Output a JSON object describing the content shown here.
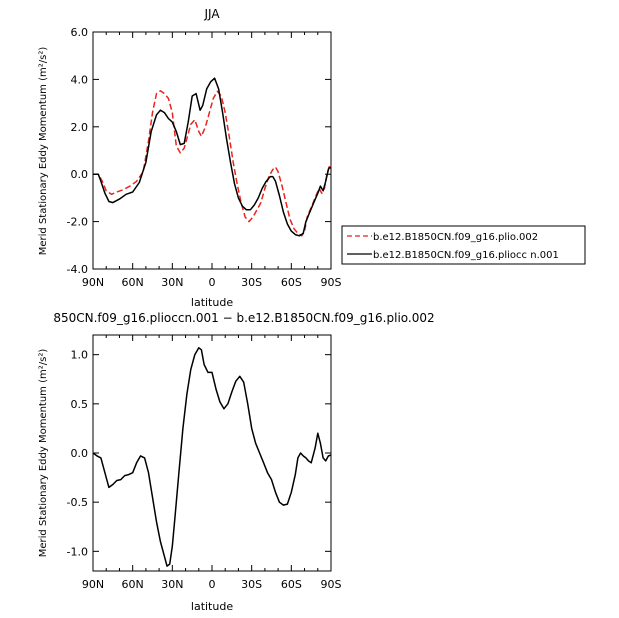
{
  "chart_data": [
    {
      "type": "line",
      "title": "JJA",
      "xlabel": "latitude",
      "ylabel": "Merid Stationary Eddy Momentum  (m²/s²)",
      "xlim": [
        90,
        -90
      ],
      "ylim": [
        -4.0,
        6.0
      ],
      "x_ticks": [
        90,
        60,
        30,
        0,
        -30,
        -60,
        -90
      ],
      "x_tick_labels": [
        "90N",
        "60N",
        "30N",
        "0",
        "30S",
        "60S",
        "90S"
      ],
      "y_ticks": [
        -4,
        -2,
        0,
        2,
        4,
        6
      ],
      "y_tick_labels": [
        "-4.0",
        "-2.0",
        "0.0",
        "2.0",
        "4.0",
        "6.0"
      ],
      "legend_position": "right",
      "series": [
        {
          "name": "b.e12.B1850CN.f09_g16.plio.002",
          "color": "#e8241f",
          "dash": "dashed",
          "points": [
            [
              90,
              0
            ],
            [
              86,
              0
            ],
            [
              83,
              -0.3
            ],
            [
              80,
              -0.7
            ],
            [
              76,
              -0.85
            ],
            [
              72,
              -0.75
            ],
            [
              67,
              -0.65
            ],
            [
              62,
              -0.5
            ],
            [
              57,
              -0.3
            ],
            [
              52,
              0.1
            ],
            [
              48,
              1.4
            ],
            [
              45,
              2.6
            ],
            [
              42,
              3.4
            ],
            [
              39,
              3.52
            ],
            [
              36,
              3.4
            ],
            [
              33,
              3.2
            ],
            [
              30,
              2.6
            ],
            [
              27,
              1.2
            ],
            [
              24,
              0.9
            ],
            [
              21,
              1.1
            ],
            [
              19,
              1.5
            ],
            [
              16,
              2.1
            ],
            [
              13,
              2.3
            ],
            [
              10,
              1.8
            ],
            [
              8,
              1.6
            ],
            [
              5,
              2.0
            ],
            [
              2,
              2.6
            ],
            [
              -1,
              3.2
            ],
            [
              -4,
              3.5
            ],
            [
              -7,
              3.3
            ],
            [
              -10,
              2.6
            ],
            [
              -13,
              1.6
            ],
            [
              -16,
              0.5
            ],
            [
              -19,
              -0.4
            ],
            [
              -22,
              -1.2
            ],
            [
              -25,
              -1.8
            ],
            [
              -28,
              -2.0
            ],
            [
              -31,
              -1.8
            ],
            [
              -34,
              -1.5
            ],
            [
              -37,
              -1.2
            ],
            [
              -40,
              -0.6
            ],
            [
              -43,
              -0.1
            ],
            [
              -46,
              0.2
            ],
            [
              -48,
              0.3
            ],
            [
              -50,
              0.1
            ],
            [
              -53,
              -0.5
            ],
            [
              -56,
              -1.2
            ],
            [
              -59,
              -1.9
            ],
            [
              -62,
              -2.3
            ],
            [
              -65,
              -2.5
            ],
            [
              -68,
              -2.6
            ],
            [
              -70,
              -2.4
            ],
            [
              -72,
              -1.8
            ],
            [
              -75,
              -1.4
            ],
            [
              -78,
              -1.0
            ],
            [
              -81,
              -0.6
            ],
            [
              -83,
              -0.8
            ],
            [
              -85,
              -0.6
            ],
            [
              -87,
              0
            ],
            [
              -89,
              0.4
            ],
            [
              -90,
              0.3
            ]
          ]
        },
        {
          "name": "b.e12.B1850CN.f09_g16.pliocc n.001",
          "color": "#000000",
          "dash": "solid",
          "points": [
            [
              90,
              0
            ],
            [
              86,
              0
            ],
            [
              84,
              -0.3
            ],
            [
              81,
              -0.8
            ],
            [
              78,
              -1.15
            ],
            [
              75,
              -1.2
            ],
            [
              70,
              -1.05
            ],
            [
              65,
              -0.85
            ],
            [
              60,
              -0.75
            ],
            [
              55,
              -0.35
            ],
            [
              50,
              0.5
            ],
            [
              46,
              1.8
            ],
            [
              42,
              2.5
            ],
            [
              39,
              2.7
            ],
            [
              36,
              2.6
            ],
            [
              33,
              2.35
            ],
            [
              30,
              2.2
            ],
            [
              27,
              1.8
            ],
            [
              24,
              1.25
            ],
            [
              21,
              1.3
            ],
            [
              18,
              2.2
            ],
            [
              15,
              3.3
            ],
            [
              12,
              3.4
            ],
            [
              9,
              2.7
            ],
            [
              7,
              2.9
            ],
            [
              4,
              3.6
            ],
            [
              1,
              3.9
            ],
            [
              -2,
              4.05
            ],
            [
              -5,
              3.6
            ],
            [
              -8,
              2.6
            ],
            [
              -11,
              1.5
            ],
            [
              -14,
              0.5
            ],
            [
              -17,
              -0.4
            ],
            [
              -20,
              -1.0
            ],
            [
              -23,
              -1.35
            ],
            [
              -26,
              -1.5
            ],
            [
              -29,
              -1.5
            ],
            [
              -32,
              -1.3
            ],
            [
              -35,
              -1.0
            ],
            [
              -38,
              -0.6
            ],
            [
              -41,
              -0.3
            ],
            [
              -44,
              -0.1
            ],
            [
              -46,
              -0.1
            ],
            [
              -48,
              -0.3
            ],
            [
              -51,
              -0.9
            ],
            [
              -54,
              -1.6
            ],
            [
              -57,
              -2.1
            ],
            [
              -60,
              -2.4
            ],
            [
              -63,
              -2.55
            ],
            [
              -66,
              -2.6
            ],
            [
              -69,
              -2.5
            ],
            [
              -71,
              -2.0
            ],
            [
              -74,
              -1.6
            ],
            [
              -77,
              -1.2
            ],
            [
              -80,
              -0.8
            ],
            [
              -82,
              -0.5
            ],
            [
              -84,
              -0.7
            ],
            [
              -86,
              -0.3
            ],
            [
              -88,
              0.2
            ],
            [
              -89,
              0.3
            ],
            [
              -90,
              0.25
            ]
          ]
        }
      ]
    },
    {
      "type": "line",
      "title": "850CN.f09_g16.plioccn.001 − b.e12.B1850CN.f09_g16.plio.002",
      "xlabel": "latitude",
      "ylabel": "Merid Stationary Eddy Momentum  (m²/s²)",
      "xlim": [
        90,
        -90
      ],
      "ylim": [
        -1.2,
        1.2
      ],
      "x_ticks": [
        90,
        60,
        30,
        0,
        -30,
        -60,
        -90
      ],
      "x_tick_labels": [
        "90N",
        "60N",
        "30N",
        "0",
        "30S",
        "60S",
        "90S"
      ],
      "y_ticks": [
        -1.0,
        -0.5,
        0.0,
        0.5,
        1.0
      ],
      "y_tick_labels": [
        "-1.0",
        "-0.5",
        "0.0",
        "0.5",
        "1.0"
      ],
      "series": [
        {
          "color": "#000000",
          "dash": "solid",
          "points": [
            [
              90,
              0
            ],
            [
              87,
              -0.03
            ],
            [
              84,
              -0.05
            ],
            [
              81,
              -0.2
            ],
            [
              78,
              -0.35
            ],
            [
              75,
              -0.32
            ],
            [
              72,
              -0.28
            ],
            [
              69,
              -0.27
            ],
            [
              66,
              -0.23
            ],
            [
              63,
              -0.22
            ],
            [
              60,
              -0.2
            ],
            [
              57,
              -0.1
            ],
            [
              54,
              -0.03
            ],
            [
              51,
              -0.05
            ],
            [
              48,
              -0.2
            ],
            [
              45,
              -0.45
            ],
            [
              42,
              -0.7
            ],
            [
              39,
              -0.9
            ],
            [
              36,
              -1.05
            ],
            [
              34,
              -1.15
            ],
            [
              32,
              -1.13
            ],
            [
              30,
              -0.95
            ],
            [
              28,
              -0.65
            ],
            [
              25,
              -0.2
            ],
            [
              22,
              0.25
            ],
            [
              19,
              0.6
            ],
            [
              16,
              0.85
            ],
            [
              13,
              1.0
            ],
            [
              10,
              1.07
            ],
            [
              8,
              1.05
            ],
            [
              6,
              0.9
            ],
            [
              3,
              0.82
            ],
            [
              0,
              0.82
            ],
            [
              -3,
              0.65
            ],
            [
              -6,
              0.52
            ],
            [
              -9,
              0.45
            ],
            [
              -12,
              0.5
            ],
            [
              -15,
              0.62
            ],
            [
              -18,
              0.73
            ],
            [
              -21,
              0.78
            ],
            [
              -24,
              0.72
            ],
            [
              -27,
              0.5
            ],
            [
              -30,
              0.25
            ],
            [
              -33,
              0.1
            ],
            [
              -36,
              0
            ],
            [
              -39,
              -0.1
            ],
            [
              -42,
              -0.2
            ],
            [
              -45,
              -0.27
            ],
            [
              -48,
              -0.4
            ],
            [
              -51,
              -0.5
            ],
            [
              -54,
              -0.53
            ],
            [
              -57,
              -0.52
            ],
            [
              -60,
              -0.4
            ],
            [
              -63,
              -0.22
            ],
            [
              -65,
              -0.05
            ],
            [
              -67,
              0
            ],
            [
              -69,
              -0.03
            ],
            [
              -71,
              -0.05
            ],
            [
              -73,
              -0.08
            ],
            [
              -75,
              -0.1
            ],
            [
              -76,
              -0.05
            ],
            [
              -78,
              0.05
            ],
            [
              -80,
              0.2
            ],
            [
              -82,
              0.1
            ],
            [
              -84,
              -0.05
            ],
            [
              -86,
              -0.08
            ],
            [
              -88,
              -0.03
            ],
            [
              -90,
              -0.02
            ]
          ]
        }
      ]
    }
  ]
}
